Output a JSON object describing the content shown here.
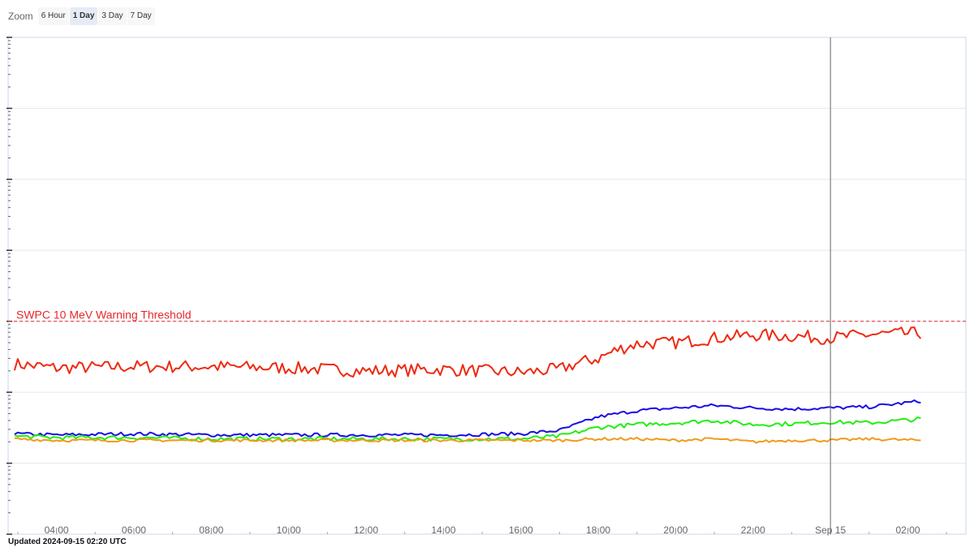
{
  "zoom": {
    "label": "Zoom",
    "buttons": [
      "6 Hour",
      "1 Day",
      "3 Day",
      "7 Day"
    ],
    "active": "1 Day"
  },
  "threshold_label": "SWPC 10 MeV Warning Threshold",
  "updated": "Updated 2024-09-15 02:20 UTC",
  "colors": {
    "red": "#ee2a12",
    "blue": "#1a0de6",
    "green": "#22ee11",
    "orange": "#f09a1a",
    "threshold": "#e8262a"
  },
  "chart_data": {
    "type": "line",
    "title": "",
    "xlabel": "",
    "ylabel": "",
    "y_scale": "log",
    "ylim": [
      0.01,
      100000
    ],
    "x_tick_labels": [
      "04:00",
      "06:00",
      "08:00",
      "10:00",
      "12:00",
      "14:00",
      "16:00",
      "18:00",
      "20:00",
      "22:00",
      "Sep 15",
      "02:00"
    ],
    "x_range": [
      "2024-09-14 02:45",
      "2024-09-15 03:30"
    ],
    "threshold": {
      "value": 10,
      "label": "SWPC 10 MeV Warning Threshold"
    },
    "crosshair_time": "2024-09-15 00:00",
    "grid": true,
    "series": [
      {
        "color": "#ee2a12",
        "points": [
          [
            "2024-09-14 02:55",
            2.5
          ],
          [
            "2024-09-14 04:00",
            2.2
          ],
          [
            "2024-09-14 06:00",
            2.3
          ],
          [
            "2024-09-14 08:00",
            2.3
          ],
          [
            "2024-09-14 10:00",
            2.2
          ],
          [
            "2024-09-14 12:00",
            2.0
          ],
          [
            "2024-09-14 14:00",
            2.1
          ],
          [
            "2024-09-14 16:00",
            1.9
          ],
          [
            "2024-09-14 17:00",
            2.1
          ],
          [
            "2024-09-14 17:30",
            2.6
          ],
          [
            "2024-09-14 18:00",
            3.0
          ],
          [
            "2024-09-14 18:30",
            4.0
          ],
          [
            "2024-09-14 19:00",
            4.8
          ],
          [
            "2024-09-14 20:00",
            5.0
          ],
          [
            "2024-09-14 21:00",
            5.8
          ],
          [
            "2024-09-14 22:00",
            6.4
          ],
          [
            "2024-09-14 23:00",
            6.2
          ],
          [
            "2024-09-15 00:00",
            5.8
          ],
          [
            "2024-09-15 01:00",
            6.5
          ],
          [
            "2024-09-15 02:20",
            6.8
          ]
        ]
      },
      {
        "color": "#1a0de6",
        "points": [
          [
            "2024-09-14 02:55",
            0.26
          ],
          [
            "2024-09-14 04:00",
            0.25
          ],
          [
            "2024-09-14 06:00",
            0.26
          ],
          [
            "2024-09-14 08:00",
            0.25
          ],
          [
            "2024-09-14 10:00",
            0.25
          ],
          [
            "2024-09-14 12:00",
            0.25
          ],
          [
            "2024-09-14 14:00",
            0.25
          ],
          [
            "2024-09-14 16:00",
            0.26
          ],
          [
            "2024-09-14 17:00",
            0.29
          ],
          [
            "2024-09-14 18:00",
            0.45
          ],
          [
            "2024-09-14 19:00",
            0.55
          ],
          [
            "2024-09-14 20:00",
            0.6
          ],
          [
            "2024-09-14 21:00",
            0.65
          ],
          [
            "2024-09-14 22:00",
            0.6
          ],
          [
            "2024-09-14 23:00",
            0.58
          ],
          [
            "2024-09-15 00:00",
            0.6
          ],
          [
            "2024-09-15 01:00",
            0.62
          ],
          [
            "2024-09-15 02:20",
            0.75
          ]
        ]
      },
      {
        "color": "#22ee11",
        "points": [
          [
            "2024-09-14 02:55",
            0.24
          ],
          [
            "2024-09-14 04:00",
            0.23
          ],
          [
            "2024-09-14 06:00",
            0.23
          ],
          [
            "2024-09-14 08:00",
            0.22
          ],
          [
            "2024-09-14 10:00",
            0.22
          ],
          [
            "2024-09-14 12:00",
            0.22
          ],
          [
            "2024-09-14 14:00",
            0.22
          ],
          [
            "2024-09-14 16:00",
            0.22
          ],
          [
            "2024-09-14 17:00",
            0.24
          ],
          [
            "2024-09-14 18:00",
            0.32
          ],
          [
            "2024-09-14 19:00",
            0.35
          ],
          [
            "2024-09-14 20:00",
            0.37
          ],
          [
            "2024-09-14 21:00",
            0.4
          ],
          [
            "2024-09-14 22:00",
            0.35
          ],
          [
            "2024-09-14 23:00",
            0.36
          ],
          [
            "2024-09-15 00:00",
            0.38
          ],
          [
            "2024-09-15 01:00",
            0.37
          ],
          [
            "2024-09-15 02:20",
            0.42
          ]
        ]
      },
      {
        "color": "#f09a1a",
        "points": [
          [
            "2024-09-14 02:55",
            0.22
          ],
          [
            "2024-09-14 04:00",
            0.21
          ],
          [
            "2024-09-14 06:00",
            0.21
          ],
          [
            "2024-09-14 08:00",
            0.21
          ],
          [
            "2024-09-14 10:00",
            0.21
          ],
          [
            "2024-09-14 12:00",
            0.21
          ],
          [
            "2024-09-14 14:00",
            0.21
          ],
          [
            "2024-09-14 16:00",
            0.21
          ],
          [
            "2024-09-14 17:00",
            0.21
          ],
          [
            "2024-09-14 18:00",
            0.22
          ],
          [
            "2024-09-14 19:00",
            0.22
          ],
          [
            "2024-09-14 20:00",
            0.21
          ],
          [
            "2024-09-14 21:00",
            0.22
          ],
          [
            "2024-09-14 22:00",
            0.2
          ],
          [
            "2024-09-14 23:00",
            0.21
          ],
          [
            "2024-09-15 00:00",
            0.21
          ],
          [
            "2024-09-15 01:00",
            0.22
          ],
          [
            "2024-09-15 02:20",
            0.21
          ]
        ]
      }
    ]
  }
}
